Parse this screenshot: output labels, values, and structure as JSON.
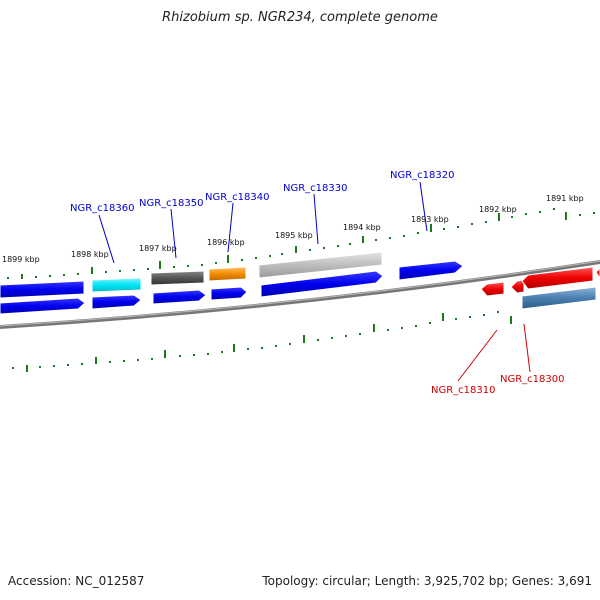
{
  "title": "Rhizobium sp. NGR234, complete genome",
  "footer": {
    "accession": "Accession: NC_012587",
    "summary": "Topology: circular; Length: 3,925,702 bp; Genes: 3,691"
  },
  "ruler_labels": [
    "1899 kbp",
    "1898 kbp",
    "1897 kbp",
    "1896 kbp",
    "1895 kbp",
    "1894 kbp",
    "1893 kbp",
    "1892 kbp",
    "1891 kbp"
  ],
  "gene_labels": {
    "c18360": "NGR_c18360",
    "c18350": "NGR_c18350",
    "c18340": "NGR_c18340",
    "c18330": "NGR_c18330",
    "c18320": "NGR_c18320",
    "c18310": "NGR_c18310",
    "c18300": "NGR_c18300"
  },
  "colors": {
    "forward_label": "#0000cc",
    "reverse_label": "#cc0000",
    "tick": "#1a7a1a",
    "backbone": "#777777",
    "blue": "#0000ee",
    "cyan": "#00e5f5",
    "dark_gray": "#555555",
    "orange": "#f08c00",
    "light_gray": "#bdbdbd",
    "red": "#ee0000",
    "steel_blue": "#4a7fb0"
  }
}
